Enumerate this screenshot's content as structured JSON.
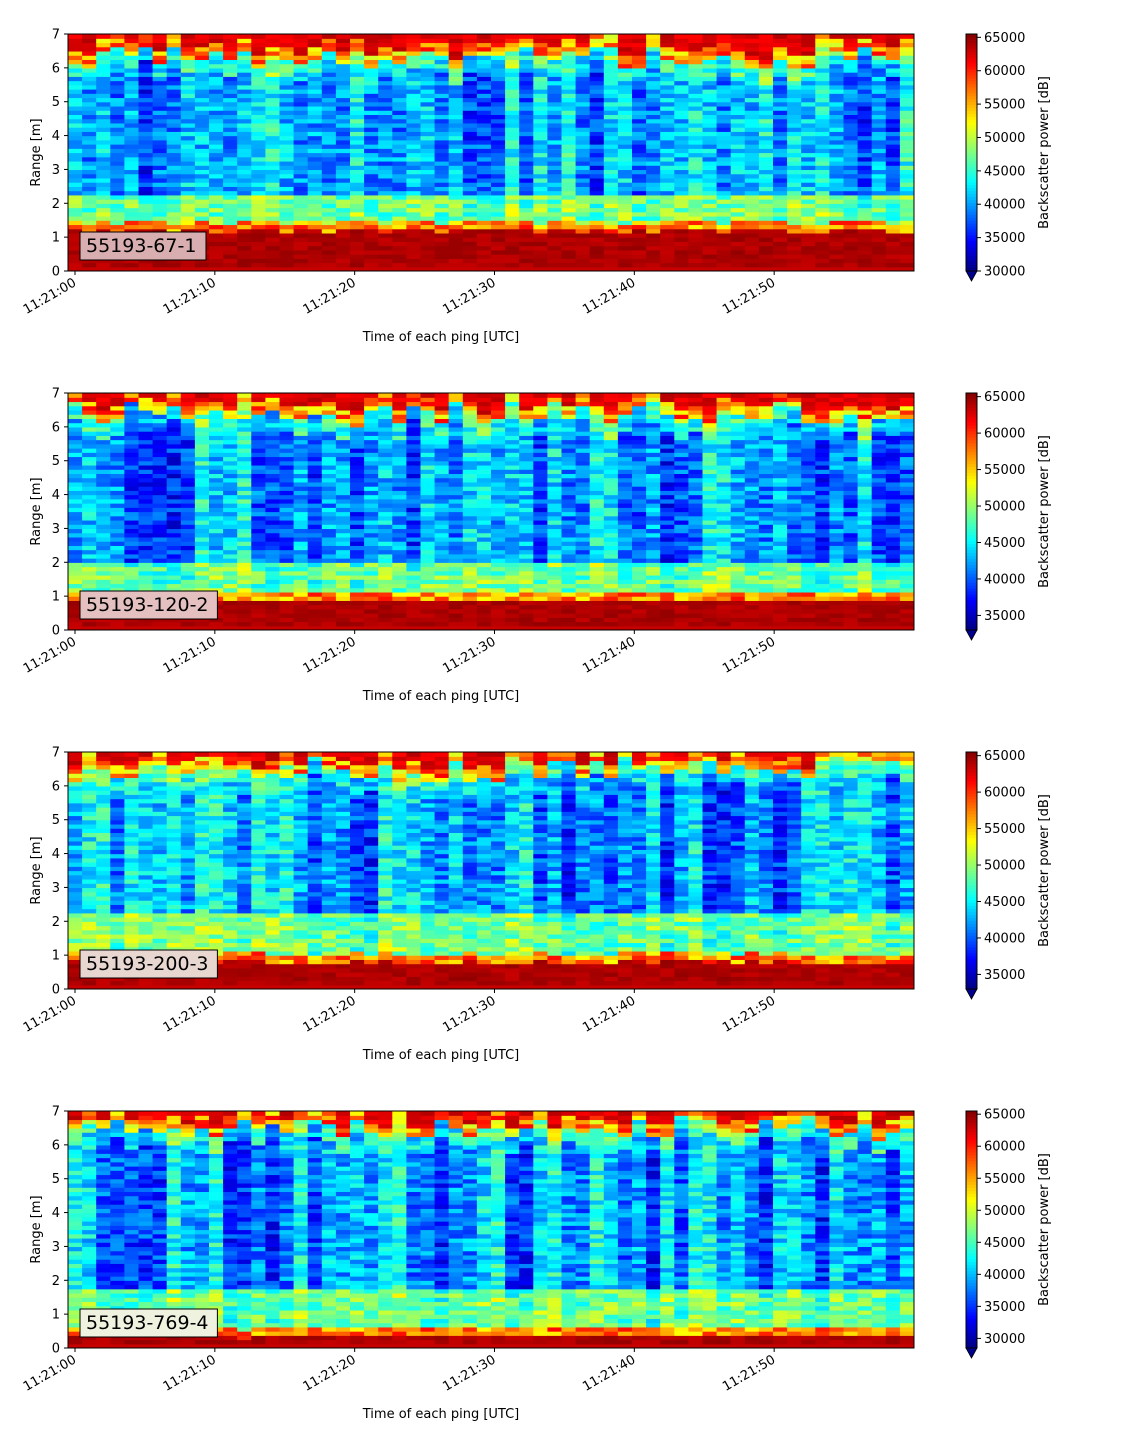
{
  "chart_data": [
    {
      "type": "heatmap",
      "label": "55193-67-1",
      "label_bg": "#d9aeb0",
      "xlabel": "Time of each ping [UTC]",
      "ylabel": "Range [m]",
      "x_ticks": [
        "11:21:00",
        "11:21:10",
        "11:21:20",
        "11:21:30",
        "11:21:40",
        "11:21:50"
      ],
      "x_range": [
        "11:21:00",
        "11:21:59"
      ],
      "y_ticks": [
        0,
        1,
        2,
        3,
        4,
        5,
        6,
        7
      ],
      "ylim": [
        0,
        7
      ],
      "colorbar": {
        "label": "Backscatter power [dB]",
        "ticks": [
          30000,
          35000,
          40000,
          45000,
          50000,
          55000,
          60000,
          65000
        ],
        "range": [
          30000,
          65500
        ],
        "colormap": "jet",
        "extend": "min"
      },
      "features": {
        "bottom_band_top_m": 1.2,
        "surface_band_m": 6.3,
        "near_bottom_green_m": [
          1.2,
          2.2
        ]
      }
    },
    {
      "type": "heatmap",
      "label": "55193-120-2",
      "label_bg": "#e4c1c0",
      "xlabel": "Time of each ping [UTC]",
      "ylabel": "Range [m]",
      "x_ticks": [
        "11:21:00",
        "11:21:10",
        "11:21:20",
        "11:21:30",
        "11:21:40",
        "11:21:50"
      ],
      "x_range": [
        "11:21:00",
        "11:21:59"
      ],
      "y_ticks": [
        0,
        1,
        2,
        3,
        4,
        5,
        6,
        7
      ],
      "ylim": [
        0,
        7
      ],
      "colorbar": {
        "label": "Backscatter power [dB]",
        "ticks": [
          35000,
          40000,
          45000,
          50000,
          55000,
          60000,
          65000
        ],
        "range": [
          33000,
          65500
        ],
        "colormap": "jet",
        "extend": "min"
      },
      "features": {
        "bottom_band_top_m": 0.85,
        "surface_band_m": 6.4,
        "near_bottom_green_m": [
          0.85,
          2.0
        ]
      }
    },
    {
      "type": "heatmap",
      "label": "55193-200-3",
      "label_bg": "#e8d6d0",
      "xlabel": "Time of each ping [UTC]",
      "ylabel": "Range [m]",
      "x_ticks": [
        "11:21:00",
        "11:21:10",
        "11:21:20",
        "11:21:30",
        "11:21:40",
        "11:21:50"
      ],
      "x_range": [
        "11:21:00",
        "11:21:59"
      ],
      "y_ticks": [
        0,
        1,
        2,
        3,
        4,
        5,
        6,
        7
      ],
      "ylim": [
        0,
        7
      ],
      "colorbar": {
        "label": "Backscatter power [dB]",
        "ticks": [
          35000,
          40000,
          45000,
          50000,
          55000,
          60000,
          65000
        ],
        "range": [
          33000,
          65500
        ],
        "colormap": "jet",
        "extend": "min"
      },
      "features": {
        "bottom_band_top_m": 0.8,
        "surface_band_m": 6.5,
        "near_bottom_green_m": [
          0.8,
          2.3
        ]
      }
    },
    {
      "type": "heatmap",
      "label": "55193-769-4",
      "label_bg": "#eef2de",
      "xlabel": "Time of each ping [UTC]",
      "ylabel": "Range [m]",
      "x_ticks": [
        "11:21:00",
        "11:21:10",
        "11:21:20",
        "11:21:30",
        "11:21:40",
        "11:21:50"
      ],
      "x_range": [
        "11:21:00",
        "11:21:59"
      ],
      "y_ticks": [
        0,
        1,
        2,
        3,
        4,
        5,
        6,
        7
      ],
      "ylim": [
        0,
        7
      ],
      "colorbar": {
        "label": "Backscatter power [dB]",
        "ticks": [
          30000,
          35000,
          40000,
          45000,
          50000,
          55000,
          60000,
          65000
        ],
        "range": [
          28500,
          65500
        ],
        "colormap": "jet",
        "extend": "min"
      },
      "features": {
        "bottom_band_top_m": 0.35,
        "surface_band_m": 6.5,
        "near_bottom_green_m": [
          0.35,
          1.8
        ]
      }
    }
  ]
}
